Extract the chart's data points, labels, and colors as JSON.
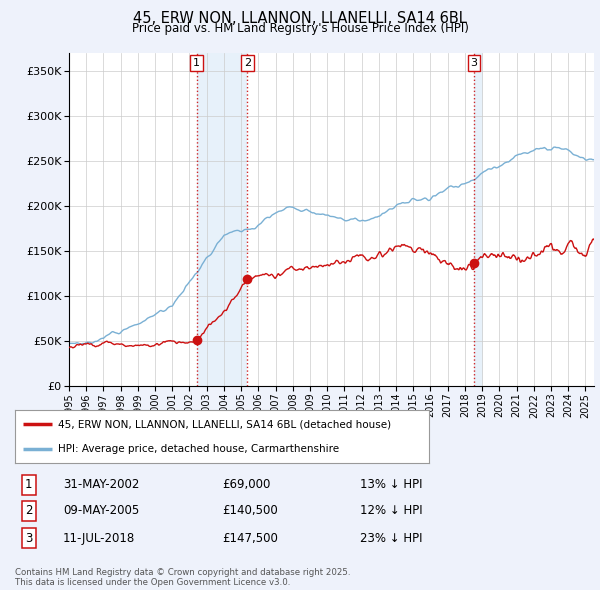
{
  "title": "45, ERW NON, LLANNON, LLANELLI, SA14 6BL",
  "subtitle": "Price paid vs. HM Land Registry's House Price Index (HPI)",
  "ylim": [
    0,
    370000
  ],
  "yticks": [
    0,
    50000,
    100000,
    150000,
    200000,
    250000,
    300000,
    350000
  ],
  "background_color": "#eef2fb",
  "plot_bg_color": "#ffffff",
  "grid_color": "#cccccc",
  "hpi_color": "#7ab0d4",
  "price_color": "#cc1111",
  "vline_color": "#cc1111",
  "shade_color": "#d0e4f7",
  "transactions": [
    {
      "label": "1",
      "x": 2002.417,
      "price": 69000
    },
    {
      "label": "2",
      "x": 2005.358,
      "price": 140500
    },
    {
      "label": "3",
      "x": 2018.525,
      "price": 147500
    }
  ],
  "legend_entries": [
    {
      "label": "45, ERW NON, LLANNON, LLANELLI, SA14 6BL (detached house)",
      "color": "#cc1111"
    },
    {
      "label": "HPI: Average price, detached house, Carmarthenshire",
      "color": "#7ab0d4"
    }
  ],
  "footer": "Contains HM Land Registry data © Crown copyright and database right 2025.\nThis data is licensed under the Open Government Licence v3.0.",
  "table_rows": [
    [
      "1",
      "31-MAY-2002",
      "£69,000",
      "13% ↓ HPI"
    ],
    [
      "2",
      "09-MAY-2005",
      "£140,500",
      "12% ↓ HPI"
    ],
    [
      "3",
      "11-JUL-2018",
      "£147,500",
      "23% ↓ HPI"
    ]
  ],
  "xlim_start": 1995.0,
  "xlim_end": 2025.5,
  "xtick_years": [
    1995,
    1996,
    1997,
    1998,
    1999,
    2000,
    2001,
    2002,
    2003,
    2004,
    2005,
    2006,
    2007,
    2008,
    2009,
    2010,
    2011,
    2012,
    2013,
    2014,
    2015,
    2016,
    2017,
    2018,
    2019,
    2020,
    2021,
    2022,
    2023,
    2024,
    2025
  ]
}
